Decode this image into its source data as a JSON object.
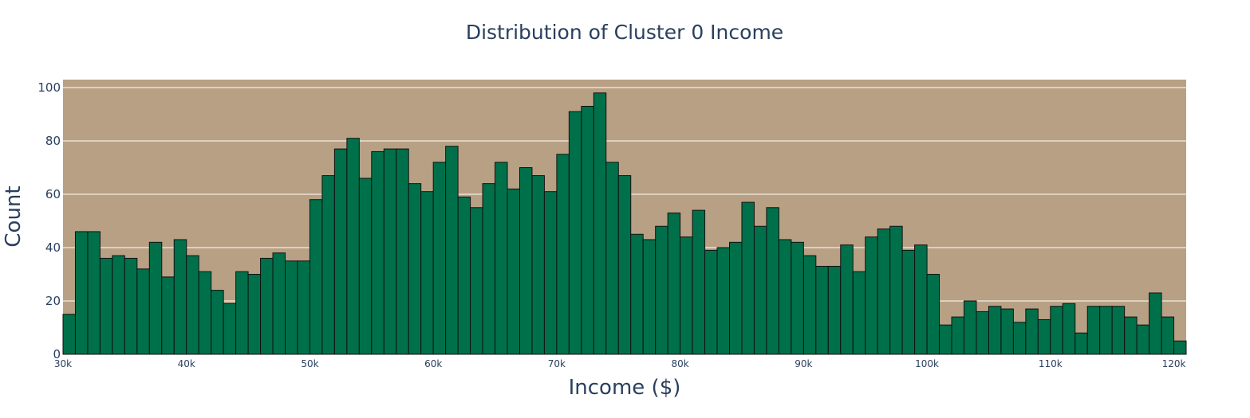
{
  "colors": {
    "plot_background": "#b8a084",
    "bar_fill": "#00704a",
    "bar_outline": "#111111",
    "grid": "#ffffff",
    "text": "#2a3f5f"
  },
  "chart_data": {
    "type": "bar",
    "title": "Distribution of Cluster 0 Income",
    "xlabel": "Income ($)",
    "ylabel": "Count",
    "xlim": [
      30000,
      121000
    ],
    "ylim": [
      0,
      103
    ],
    "bin_width": 1000,
    "grid": true,
    "legend": "none",
    "x_ticks": [
      {
        "value": 30000,
        "label": "30k"
      },
      {
        "value": 40000,
        "label": "40k"
      },
      {
        "value": 50000,
        "label": "50k"
      },
      {
        "value": 60000,
        "label": "60k"
      },
      {
        "value": 70000,
        "label": "70k"
      },
      {
        "value": 80000,
        "label": "80k"
      },
      {
        "value": 90000,
        "label": "90k"
      },
      {
        "value": 100000,
        "label": "100k"
      },
      {
        "value": 110000,
        "label": "110k"
      },
      {
        "value": 120000,
        "label": "120k"
      }
    ],
    "y_ticks": [
      {
        "value": 0,
        "label": "0"
      },
      {
        "value": 20,
        "label": "20"
      },
      {
        "value": 40,
        "label": "40"
      },
      {
        "value": 60,
        "label": "60"
      },
      {
        "value": 80,
        "label": "80"
      },
      {
        "value": 100,
        "label": "100"
      }
    ],
    "bin_starts": [
      30000,
      31000,
      32000,
      33000,
      34000,
      35000,
      36000,
      37000,
      38000,
      39000,
      40000,
      41000,
      42000,
      43000,
      44000,
      45000,
      46000,
      47000,
      48000,
      49000,
      50000,
      51000,
      52000,
      53000,
      54000,
      55000,
      56000,
      57000,
      58000,
      59000,
      60000,
      61000,
      62000,
      63000,
      64000,
      65000,
      66000,
      67000,
      68000,
      69000,
      70000,
      71000,
      72000,
      73000,
      74000,
      75000,
      76000,
      77000,
      78000,
      79000,
      80000,
      81000,
      82000,
      83000,
      84000,
      85000,
      86000,
      87000,
      88000,
      89000,
      90000,
      91000,
      92000,
      93000,
      94000,
      95000,
      96000,
      97000,
      98000,
      99000,
      100000,
      101000,
      102000,
      103000,
      104000,
      105000,
      106000,
      107000,
      108000,
      109000,
      110000,
      111000,
      112000,
      113000,
      114000,
      115000,
      116000,
      117000,
      118000,
      119000,
      120000
    ],
    "values": [
      15,
      46,
      46,
      36,
      37,
      36,
      32,
      42,
      29,
      43,
      37,
      31,
      24,
      19,
      31,
      30,
      36,
      38,
      35,
      35,
      58,
      67,
      77,
      81,
      66,
      76,
      77,
      77,
      64,
      61,
      72,
      78,
      59,
      55,
      64,
      72,
      62,
      70,
      67,
      61,
      75,
      91,
      93,
      98,
      72,
      67,
      45,
      43,
      48,
      53,
      44,
      54,
      39,
      40,
      42,
      57,
      48,
      55,
      43,
      42,
      37,
      33,
      33,
      41,
      31,
      44,
      47,
      48,
      39,
      41,
      30,
      11,
      14,
      20,
      16,
      18,
      17,
      12,
      17,
      13,
      18,
      19,
      8,
      18,
      18,
      18,
      14,
      11,
      23,
      14,
      5
    ]
  }
}
